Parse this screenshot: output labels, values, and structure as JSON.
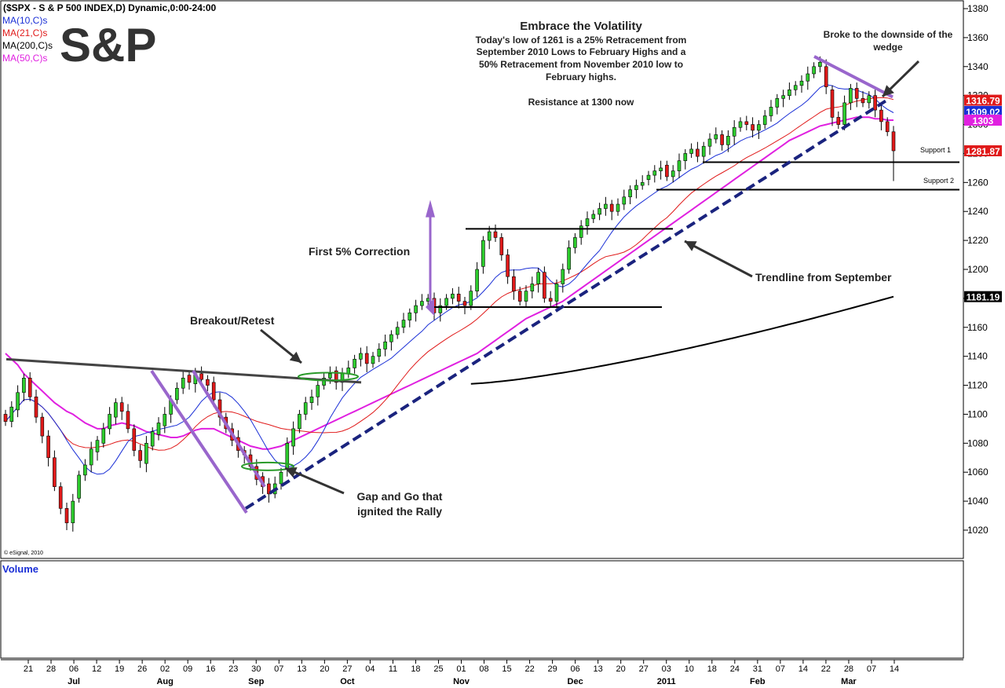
{
  "chart_data": {
    "type": "candlestick",
    "header": "($SPX - S & P 500 INDEX,D) Dynamic,0:00-24:00",
    "logo_text": "S&P",
    "title": "Embrace the Volatility",
    "subtitle_lines": [
      "Today's low of 1261 is a 25% Retracement from",
      "September 2010 Lows to February Highs and a",
      "50% Retracement from November 2010 low to",
      "February highs."
    ],
    "resistance_note": "Resistance at 1300 now",
    "copyright": "© eSignal, 2010",
    "volume_label": "Volume",
    "colors": {
      "up": "#2ecc2e",
      "down": "#e01a1a",
      "ma10": "#1a2fd6",
      "ma21": "#e01a1a",
      "ma200": "#000000",
      "ma50": "#e020e0",
      "trendline": "#1a237e",
      "wedge": "#9966cc",
      "ellipse": "#2a9a2a"
    },
    "legend": [
      {
        "label": "MA(10,C)s",
        "color": "#1a2fd6"
      },
      {
        "label": "MA(21,C)s",
        "color": "#e01a1a"
      },
      {
        "label": "MA(200,C)s",
        "color": "#000000"
      },
      {
        "label": "MA(50,C)s",
        "color": "#e020e0"
      }
    ],
    "y_axis": {
      "min": 1005,
      "max": 1385,
      "ticks": [
        1020,
        1040,
        1060,
        1080,
        1100,
        1120,
        1140,
        1160,
        1180,
        1200,
        1220,
        1240,
        1260,
        1280,
        1300,
        1320,
        1340,
        1360,
        1380
      ]
    },
    "x_axis": {
      "day_ticks": [
        "21",
        "28",
        "06",
        "12",
        "19",
        "26",
        "02",
        "09",
        "16",
        "23",
        "30",
        "07",
        "13",
        "20",
        "27",
        "04",
        "11",
        "18",
        "25",
        "01",
        "08",
        "15",
        "22",
        "29",
        "06",
        "13",
        "20",
        "27",
        "03",
        "10",
        "18",
        "24",
        "31",
        "07",
        "14",
        "22",
        "28",
        "07",
        "14"
      ],
      "month_labels": [
        {
          "label": "Jul",
          "at_tick": 2
        },
        {
          "label": "Aug",
          "at_tick": 6
        },
        {
          "label": "Sep",
          "at_tick": 10
        },
        {
          "label": "Oct",
          "at_tick": 14
        },
        {
          "label": "Nov",
          "at_tick": 19
        },
        {
          "label": "Dec",
          "at_tick": 24
        },
        {
          "label": "2011",
          "at_tick": 28
        },
        {
          "label": "Feb",
          "at_tick": 32
        },
        {
          "label": "Mar",
          "at_tick": 36
        }
      ]
    },
    "price_tags": [
      {
        "value": "1316.79",
        "price": 1316.79,
        "color": "#e01a1a"
      },
      {
        "value": "1309.02",
        "price": 1309.02,
        "color": "#1a2fd6"
      },
      {
        "value": "1303",
        "price": 1303,
        "color": "#e020e0"
      },
      {
        "value": "1281.87",
        "price": 1281.87,
        "color": "#e01a1a"
      },
      {
        "value": "1181.19",
        "price": 1181.19,
        "color": "#000000"
      }
    ],
    "support_lines": [
      {
        "label": "Support 1",
        "price": 1274
      },
      {
        "label": "Support 2",
        "price": 1255
      }
    ],
    "annotations": {
      "breakout": "Breakout/Retest",
      "correction": "First 5%  Correction",
      "trendline": "Trendline from September",
      "gap_line1": "Gap and Go that",
      "gap_line2": "ignited the Rally",
      "wedge_line1": "Broke to the downside of the",
      "wedge_line2": "wedge"
    },
    "closes": [
      1095,
      1105,
      1115,
      1125,
      1112,
      1098,
      1085,
      1070,
      1050,
      1035,
      1025,
      1040,
      1058,
      1065,
      1076,
      1082,
      1090,
      1100,
      1108,
      1102,
      1090,
      1075,
      1068,
      1080,
      1088,
      1094,
      1100,
      1110,
      1118,
      1125,
      1122,
      1128,
      1124,
      1120,
      1110,
      1098,
      1090,
      1082,
      1075,
      1072,
      1064,
      1055,
      1050,
      1045,
      1052,
      1060,
      1080,
      1090,
      1100,
      1108,
      1112,
      1120,
      1125,
      1128,
      1122,
      1128,
      1132,
      1138,
      1142,
      1135,
      1140,
      1145,
      1150,
      1155,
      1160,
      1165,
      1170,
      1175,
      1178,
      1180,
      1170,
      1175,
      1180,
      1183,
      1178,
      1175,
      1185,
      1200,
      1220,
      1226,
      1222,
      1210,
      1195,
      1185,
      1178,
      1185,
      1190,
      1198,
      1180,
      1178,
      1190,
      1200,
      1215,
      1222,
      1230,
      1235,
      1238,
      1242,
      1245,
      1240,
      1245,
      1250,
      1255,
      1258,
      1260,
      1265,
      1268,
      1270,
      1264,
      1268,
      1275,
      1280,
      1283,
      1278,
      1285,
      1290,
      1293,
      1286,
      1292,
      1298,
      1302,
      1300,
      1296,
      1300,
      1306,
      1312,
      1318,
      1320,
      1324,
      1327,
      1330,
      1335,
      1340,
      1343,
      1326,
      1305,
      1300,
      1315,
      1325,
      1318,
      1315,
      1320,
      1310,
      1302,
      1295,
      1281.87
    ],
    "opens": [
      1100,
      1095,
      1103,
      1115,
      1125,
      1112,
      1098,
      1085,
      1070,
      1050,
      1035,
      1025,
      1042,
      1058,
      1065,
      1074,
      1080,
      1090,
      1098,
      1108,
      1102,
      1090,
      1075,
      1066,
      1078,
      1086,
      1092,
      1100,
      1110,
      1118,
      1127,
      1121,
      1128,
      1124,
      1122,
      1110,
      1098,
      1090,
      1084,
      1075,
      1072,
      1064,
      1057,
      1052,
      1045,
      1052,
      1062,
      1078,
      1090,
      1100,
      1108,
      1112,
      1120,
      1125,
      1130,
      1122,
      1128,
      1132,
      1138,
      1142,
      1135,
      1140,
      1145,
      1150,
      1155,
      1160,
      1165,
      1170,
      1175,
      1178,
      1180,
      1170,
      1175,
      1180,
      1183,
      1178,
      1175,
      1185,
      1202,
      1220,
      1226,
      1222,
      1210,
      1195,
      1185,
      1178,
      1185,
      1190,
      1198,
      1180,
      1178,
      1190,
      1200,
      1215,
      1222,
      1230,
      1235,
      1238,
      1242,
      1245,
      1240,
      1245,
      1250,
      1255,
      1258,
      1262,
      1265,
      1268,
      1272,
      1264,
      1268,
      1275,
      1280,
      1283,
      1278,
      1285,
      1290,
      1293,
      1286,
      1292,
      1298,
      1302,
      1300,
      1296,
      1300,
      1306,
      1312,
      1318,
      1320,
      1324,
      1327,
      1330,
      1335,
      1340,
      1340,
      1324,
      1305,
      1300,
      1315,
      1325,
      1318,
      1315,
      1320,
      1310,
      1302,
      1295
    ],
    "low_last": 1261,
    "ma50": [
      1142,
      1138,
      1134,
      1128,
      1124,
      1120,
      1116,
      1112,
      1108,
      1105,
      1102,
      1100,
      1097,
      1094,
      1092,
      1090,
      1090,
      1092,
      1093,
      1094,
      1093,
      1092,
      1090,
      1088,
      1087,
      1086,
      1085,
      1084,
      1084,
      1085,
      1087,
      1089,
      1090,
      1090,
      1090,
      1088,
      1086,
      1084,
      1082,
      1080,
      1078,
      1077,
      1076,
      1076,
      1077,
      1078,
      1080,
      1082,
      1084,
      1086,
      1088,
      1090,
      1092,
      1094,
      1096,
      1098,
      1100,
      1102,
      1104,
      1106,
      1108,
      1110,
      1112,
      1114,
      1116,
      1118,
      1120,
      1122,
      1124,
      1126,
      1128,
      1130,
      1132,
      1134,
      1136,
      1138,
      1140,
      1142,
      1145,
      1148,
      1151,
      1154,
      1157,
      1160,
      1163,
      1166,
      1168,
      1170,
      1172,
      1174,
      1176,
      1178,
      1181,
      1184,
      1187,
      1190,
      1193,
      1196,
      1199,
      1202,
      1205,
      1208,
      1211,
      1214,
      1217,
      1220,
      1223,
      1226,
      1229,
      1232,
      1235,
      1238,
      1241,
      1244,
      1247,
      1250,
      1253,
      1256,
      1259,
      1262,
      1265,
      1268,
      1271,
      1274,
      1277,
      1280,
      1283,
      1286,
      1289,
      1291,
      1293,
      1295,
      1297,
      1299,
      1300,
      1301,
      1302,
      1303,
      1304,
      1305,
      1305,
      1305,
      1304,
      1304,
      1303,
      1303
    ],
    "ma200_start_index": 76,
    "ma200_start": 1121,
    "ma200_end": 1181.19
  }
}
